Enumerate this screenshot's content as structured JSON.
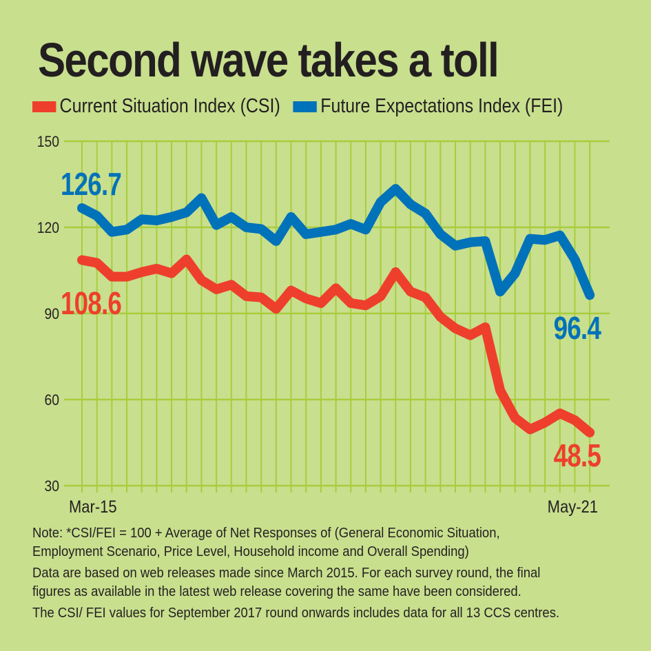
{
  "title": "Second wave takes a toll",
  "colors": {
    "background": "#c8df8e",
    "grid": "#a8cd3c",
    "csi": "#ee3f2c",
    "fei": "#0072b9"
  },
  "chart_data": {
    "type": "line",
    "title": "Second wave takes a toll",
    "x_tick_labels": [
      "Mar-15",
      "May-21"
    ],
    "x_range": [
      "Mar-15",
      "May-21"
    ],
    "rounds": 35,
    "ylim": [
      30,
      150
    ],
    "yticks": [
      150,
      120,
      90,
      60,
      30
    ],
    "grid": true,
    "legend_placement": "top",
    "series": [
      {
        "name": "Current Situation Index (CSI)",
        "color": "#ee3f2c",
        "values": [
          108.6,
          107.6,
          102.8,
          102.8,
          104.4,
          105.6,
          104.0,
          108.8,
          101.6,
          98.4,
          100.0,
          96.0,
          95.6,
          91.6,
          98.0,
          95.2,
          93.6,
          98.8,
          93.6,
          92.8,
          96.0,
          104.4,
          97.6,
          95.6,
          88.8,
          84.8,
          82.4,
          85.2,
          63.2,
          53.6,
          49.6,
          52.0,
          55.2,
          52.8,
          48.5
        ],
        "start_label": "108.6",
        "end_label": "48.5"
      },
      {
        "name": "Future Expectations Index (FEI)",
        "color": "#0072b9",
        "values": [
          126.7,
          124.0,
          118.4,
          119.2,
          122.8,
          122.4,
          123.6,
          125.2,
          130.2,
          120.8,
          123.6,
          120.0,
          119.4,
          115.2,
          123.6,
          117.6,
          118.4,
          119.2,
          121.2,
          119.2,
          128.8,
          133.4,
          128.0,
          124.8,
          117.6,
          113.6,
          114.8,
          115.2,
          97.6,
          104.0,
          116.0,
          115.6,
          117.2,
          108.8,
          96.4
        ],
        "start_label": "126.7",
        "end_label": "96.4"
      }
    ]
  },
  "notes": {
    "lines": [
      "Note: *CSI/FEI = 100 + Average of Net Responses of (General Economic Situation,",
      "Employment Scenario, Price Level, Household income and Overall Spending)",
      "Data are based on web releases made since March 2015. For each survey round, the final",
      "figures as available in the latest web release covering the same have been considered.",
      "The CSI/ FEI values for September 2017 round onwards includes data for all 13 CCS centres."
    ]
  }
}
